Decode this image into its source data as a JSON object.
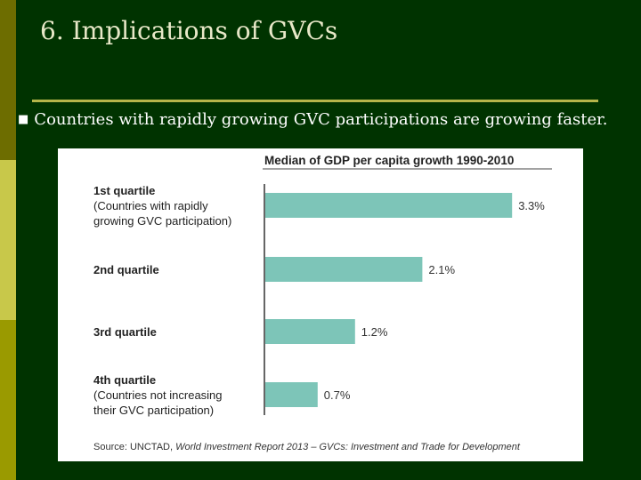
{
  "slide": {
    "title": "6. Implications of GVCs",
    "bullet_marker": "■",
    "bullet": "Countries with rapidly growing GVC participations are growing faster."
  },
  "colors": {
    "background": "#003300",
    "bar": "#7dc5b8",
    "title_text": "#e8e8c8",
    "rule": "#b5b54a"
  },
  "chart_data": {
    "type": "bar",
    "orientation": "horizontal",
    "title": "Median of GDP per capita growth 1990-2010",
    "categories": [
      [
        "1st quartile",
        "(Countries with rapidly",
        "growing GVC participation)"
      ],
      [
        "2nd quartile"
      ],
      [
        "3rd quartile"
      ],
      [
        "4th quartile",
        "(Countries not increasing",
        "their GVC participation)"
      ]
    ],
    "values": [
      3.3,
      2.1,
      1.2,
      0.7
    ],
    "value_labels": [
      "3.3%",
      "2.1%",
      "1.2%",
      "0.7%"
    ],
    "xlim": [
      0,
      3.5
    ],
    "grid": false,
    "source": {
      "prefix": "Source: UNCTAD, ",
      "italic": "World Investment Report 2013 – GVCs: Investment and Trade for Development"
    }
  }
}
